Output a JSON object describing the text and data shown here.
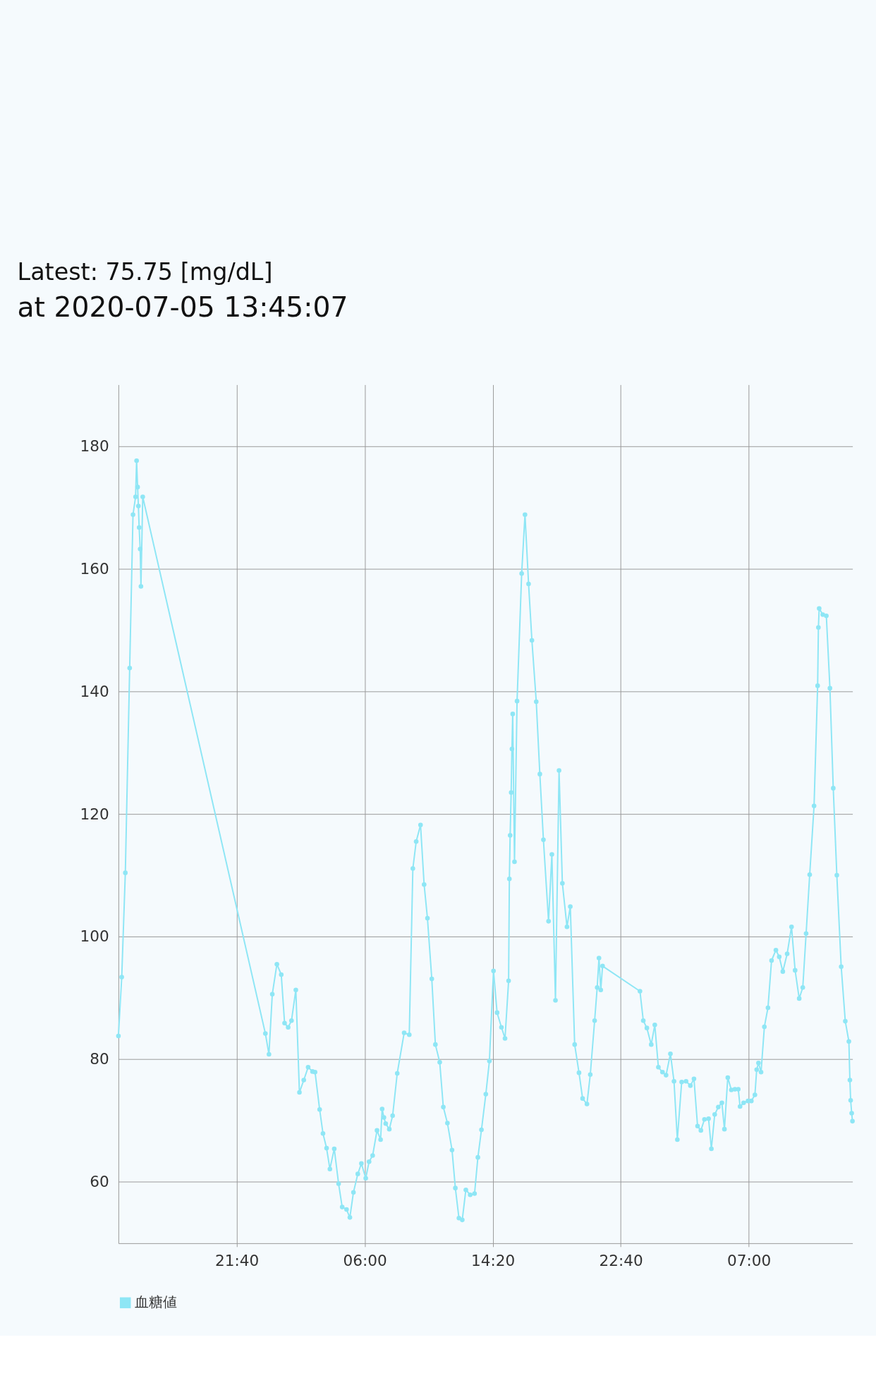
{
  "chart_data": {
    "type": "line",
    "annotations": [
      "Latest: 75.75 [mg/dL]",
      "at 2020-07-05 13:45:07"
    ],
    "xlim": [
      "2020-07-03T13:58",
      "2020-07-05T13:45"
    ],
    "ylim": [
      50,
      190
    ],
    "xticks": [
      {
        "value": "2020-07-03T21:40",
        "label": "21:40"
      },
      {
        "value": "2020-07-04T06:00",
        "label": "06:00"
      },
      {
        "value": "2020-07-04T14:20",
        "label": "14:20"
      },
      {
        "value": "2020-07-04T22:40",
        "label": "22:40"
      },
      {
        "value": "2020-07-05T07:00",
        "label": "07:00"
      }
    ],
    "yticks": [
      60,
      80,
      100,
      120,
      140,
      160,
      180
    ],
    "grid": true,
    "legend": "bottom",
    "marker": "circle",
    "line_style": "solid",
    "series": [
      {
        "name": "血糖値",
        "color": "#8ee6f5",
        "x": [
          "2020-07-03T13:58",
          "2020-07-03T14:11",
          "2020-07-03T14:25",
          "2020-07-03T14:42",
          "2020-07-03T14:55",
          "2020-07-03T15:05",
          "2020-07-03T15:09",
          "2020-07-03T15:13",
          "2020-07-03T15:16",
          "2020-07-03T15:19",
          "2020-07-03T15:23",
          "2020-07-03T15:26",
          "2020-07-03T15:33",
          "2020-07-03T23:32",
          "2020-07-03T23:46",
          "2020-07-03T23:59",
          "2020-07-04T00:17",
          "2020-07-04T00:34",
          "2020-07-04T00:47",
          "2020-07-04T01:01",
          "2020-07-04T01:14",
          "2020-07-04T01:31",
          "2020-07-04T01:45",
          "2020-07-04T02:02",
          "2020-07-04T02:19",
          "2020-07-04T02:36",
          "2020-07-04T02:46",
          "2020-07-04T03:04",
          "2020-07-04T03:17",
          "2020-07-04T03:31",
          "2020-07-04T03:44",
          "2020-07-04T04:01",
          "2020-07-04T04:18",
          "2020-07-04T04:32",
          "2020-07-04T04:49",
          "2020-07-04T05:02",
          "2020-07-04T05:16",
          "2020-07-04T05:33",
          "2020-07-04T05:47",
          "2020-07-04T06:04",
          "2020-07-04T06:17",
          "2020-07-04T06:31",
          "2020-07-04T06:48",
          "2020-07-04T07:02",
          "2020-07-04T07:08",
          "2020-07-04T07:15",
          "2020-07-04T07:22",
          "2020-07-04T07:36",
          "2020-07-04T07:49",
          "2020-07-04T08:07",
          "2020-07-04T08:34",
          "2020-07-04T08:54",
          "2020-07-04T09:08",
          "2020-07-04T09:21",
          "2020-07-04T09:38",
          "2020-07-04T09:52",
          "2020-07-04T10:05",
          "2020-07-04T10:22",
          "2020-07-04T10:36",
          "2020-07-04T10:53",
          "2020-07-04T11:07",
          "2020-07-04T11:23",
          "2020-07-04T11:41",
          "2020-07-04T11:54",
          "2020-07-04T12:08",
          "2020-07-04T12:21",
          "2020-07-04T12:35",
          "2020-07-04T12:52",
          "2020-07-04T13:09",
          "2020-07-04T13:22",
          "2020-07-04T13:36",
          "2020-07-04T13:53",
          "2020-07-04T14:07",
          "2020-07-04T14:23",
          "2020-07-04T14:37",
          "2020-07-04T14:54",
          "2020-07-04T15:08",
          "2020-07-04T15:22",
          "2020-07-04T15:25",
          "2020-07-04T15:28",
          "2020-07-04T15:32",
          "2020-07-04T15:35",
          "2020-07-04T15:38",
          "2020-07-04T15:45",
          "2020-07-04T15:55",
          "2020-07-04T16:13",
          "2020-07-04T16:26",
          "2020-07-04T16:40",
          "2020-07-04T16:53",
          "2020-07-04T17:10",
          "2020-07-04T17:24",
          "2020-07-04T17:38",
          "2020-07-04T17:58",
          "2020-07-04T18:11",
          "2020-07-04T18:25",
          "2020-07-04T18:39",
          "2020-07-04T18:52",
          "2020-07-04T19:10",
          "2020-07-04T19:23",
          "2020-07-04T19:40",
          "2020-07-04T19:57",
          "2020-07-04T20:11",
          "2020-07-04T20:28",
          "2020-07-04T20:41",
          "2020-07-04T20:58",
          "2020-07-04T21:08",
          "2020-07-04T21:15",
          "2020-07-04T21:22",
          "2020-07-04T21:29",
          "2020-07-04T23:55",
          "2020-07-05T00:08",
          "2020-07-05T00:22",
          "2020-07-05T00:39",
          "2020-07-05T00:53",
          "2020-07-05T01:07",
          "2020-07-05T01:23",
          "2020-07-05T01:37",
          "2020-07-05T01:54",
          "2020-07-05T02:08",
          "2020-07-05T02:21",
          "2020-07-05T02:38",
          "2020-07-05T02:55",
          "2020-07-05T03:12",
          "2020-07-05T03:26",
          "2020-07-05T03:40",
          "2020-07-05T03:53",
          "2020-07-05T04:07",
          "2020-07-05T04:23",
          "2020-07-05T04:34",
          "2020-07-05T04:47",
          "2020-07-05T05:01",
          "2020-07-05T05:15",
          "2020-07-05T05:25",
          "2020-07-05T05:38",
          "2020-07-05T05:52",
          "2020-07-05T06:06",
          "2020-07-05T06:19",
          "2020-07-05T06:26",
          "2020-07-05T06:40",
          "2020-07-05T06:57",
          "2020-07-05T07:10",
          "2020-07-05T07:24",
          "2020-07-05T07:31",
          "2020-07-05T07:38",
          "2020-07-05T07:48",
          "2020-07-05T08:01",
          "2020-07-05T08:15",
          "2020-07-05T08:29",
          "2020-07-05T08:46",
          "2020-07-05T08:59",
          "2020-07-05T09:13",
          "2020-07-05T09:30",
          "2020-07-05T09:47",
          "2020-07-05T10:01",
          "2020-07-05T10:17",
          "2020-07-05T10:31",
          "2020-07-05T10:44",
          "2020-07-05T10:58",
          "2020-07-05T11:15",
          "2020-07-05T11:29",
          "2020-07-05T11:32",
          "2020-07-05T11:35",
          "2020-07-05T11:49",
          "2020-07-05T12:03",
          "2020-07-05T12:17",
          "2020-07-05T12:30",
          "2020-07-05T12:44",
          "2020-07-05T13:01",
          "2020-07-05T13:17",
          "2020-07-05T13:31",
          "2020-07-05T13:35",
          "2020-07-05T13:38",
          "2020-07-05T13:42",
          "2020-07-05T13:45"
        ],
        "values": [
          83.8,
          93.4,
          110.4,
          143.8,
          168.8,
          171.7,
          177.6,
          173.3,
          170.2,
          166.7,
          163.2,
          157.1,
          171.7,
          84.2,
          80.8,
          90.6,
          95.5,
          93.8,
          85.9,
          85.2,
          86.3,
          91.3,
          74.6,
          76.6,
          78.7,
          78.0,
          77.9,
          71.8,
          67.9,
          65.5,
          62.1,
          65.4,
          59.7,
          55.9,
          55.5,
          54.2,
          58.3,
          61.3,
          63.0,
          60.6,
          63.3,
          64.3,
          68.4,
          66.9,
          71.9,
          70.5,
          69.5,
          68.6,
          70.8,
          77.7,
          84.3,
          84.0,
          111.1,
          115.5,
          118.2,
          108.5,
          103.0,
          93.1,
          82.4,
          79.5,
          72.2,
          69.6,
          65.2,
          59.0,
          54.1,
          53.8,
          58.7,
          57.9,
          58.1,
          64.0,
          68.5,
          74.3,
          79.7,
          94.4,
          87.6,
          85.2,
          83.4,
          92.8,
          109.4,
          116.5,
          123.5,
          130.6,
          136.3,
          112.2,
          138.4,
          159.2,
          168.8,
          157.5,
          148.3,
          138.3,
          126.5,
          115.8,
          102.5,
          113.4,
          89.6,
          127.1,
          108.7,
          101.6,
          104.9,
          82.4,
          77.8,
          73.6,
          72.7,
          77.5,
          86.3,
          91.7,
          96.5,
          91.3,
          95.2,
          91.1,
          86.3,
          85.1,
          82.4,
          85.6,
          78.7,
          77.9,
          77.4,
          80.9,
          76.4,
          66.9,
          76.3,
          76.4,
          75.7,
          76.8,
          69.1,
          68.4,
          70.2,
          70.3,
          65.4,
          71.0,
          72.2,
          72.9,
          68.6,
          77.0,
          75.0,
          75.1,
          75.1,
          72.3,
          72.9,
          73.2,
          73.2,
          74.2,
          78.3,
          79.4,
          77.9,
          85.3,
          88.4,
          96.1,
          97.8,
          96.7,
          94.3,
          97.2,
          101.6,
          94.5,
          89.9,
          91.7,
          100.5,
          110.1,
          121.3,
          140.9,
          150.4,
          153.5,
          152.5,
          152.3,
          140.5,
          124.2,
          110.0,
          95.1,
          86.2,
          82.9,
          76.6,
          73.3,
          71.2,
          69.9
        ]
      }
    ]
  }
}
